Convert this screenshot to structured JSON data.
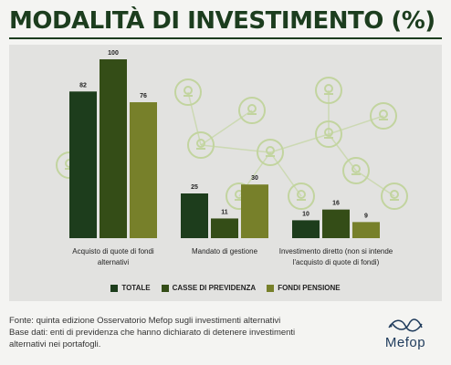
{
  "title": "MODALITÀ DI INVESTIMENTO (%)",
  "colors": {
    "background": "#f4f4f2",
    "panel": "#e2e2e0",
    "title": "#1c3d1e",
    "icons": "#b8d08a",
    "logo": "#1f3b5c"
  },
  "chart_data": {
    "type": "bar",
    "categories": [
      [
        "Acquisto di quote di fondi",
        "alternativi"
      ],
      [
        "Mandato di gestione"
      ],
      [
        "Investimento diretto (non si intende",
        "l'acquisto di quote di fondi)"
      ]
    ],
    "series": [
      {
        "name": "TOTALE",
        "color": "#1d3d1c",
        "values": [
          82,
          25,
          10
        ]
      },
      {
        "name": "CASSE DI PREVIDENZA",
        "color": "#344d17",
        "values": [
          100,
          11,
          16
        ]
      },
      {
        "name": "FONDI PENSIONE",
        "color": "#77802a",
        "values": [
          76,
          30,
          9
        ]
      }
    ],
    "ylim": [
      0,
      100
    ],
    "grid": false,
    "legend": "bottom-center",
    "data_labels": true
  },
  "footer": {
    "lines": [
      "Fonte: quinta edizione Osservatorio Mefop sugli investimenti alternativi",
      "Base dati: enti di previdenza che hanno dichiarato di detenere investimenti",
      "alternativi nei portafogli."
    ]
  },
  "logo": {
    "text": "Mefop"
  },
  "decor_icons": [
    "sun-icon",
    "leaf-icon",
    "recycle-icon",
    "trash-bin-icon",
    "wind-turbine-icon",
    "people-icon",
    "bicycle-icon",
    "house-icon",
    "solar-panel-icon",
    "lightbulb-icon",
    "water-drop-icon",
    "plant-icon"
  ]
}
